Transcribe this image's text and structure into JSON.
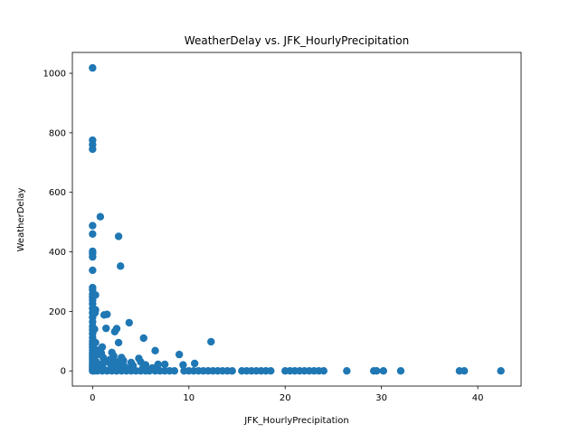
{
  "chart_data": {
    "type": "scatter",
    "title": "WeatherDelay vs. JFK_HourlyPrecipitation",
    "xlabel": "JFK_HourlyPrecipitation",
    "ylabel": "WeatherDelay",
    "xlim": [
      -2.1,
      44.5
    ],
    "ylim": [
      -51,
      1070
    ],
    "xticks": [
      0,
      10,
      20,
      30,
      40
    ],
    "yticks": [
      0,
      200,
      400,
      600,
      800,
      1000
    ],
    "grid": false,
    "color": "#1f77b4",
    "series": [
      {
        "points": [
          [
            0,
            1018
          ],
          [
            0,
            775
          ],
          [
            0,
            760
          ],
          [
            0,
            745
          ],
          [
            0,
            488
          ],
          [
            0,
            460
          ],
          [
            0,
            402
          ],
          [
            0,
            395
          ],
          [
            0,
            383
          ],
          [
            0,
            338
          ],
          [
            0,
            280
          ],
          [
            0,
            272
          ],
          [
            0,
            258
          ],
          [
            0,
            248
          ],
          [
            0,
            238
          ],
          [
            0,
            225
          ],
          [
            0,
            210
          ],
          [
            0,
            195
          ],
          [
            0,
            180
          ],
          [
            0,
            165
          ],
          [
            0,
            150
          ],
          [
            0,
            138
          ],
          [
            0,
            125
          ],
          [
            0,
            112
          ],
          [
            0,
            100
          ],
          [
            0,
            90
          ],
          [
            0,
            80
          ],
          [
            0,
            70
          ],
          [
            0,
            60
          ],
          [
            0,
            52
          ],
          [
            0,
            45
          ],
          [
            0,
            38
          ],
          [
            0,
            30
          ],
          [
            0,
            24
          ],
          [
            0,
            18
          ],
          [
            0,
            12
          ],
          [
            0,
            6
          ],
          [
            0,
            0
          ],
          [
            0.3,
            255
          ],
          [
            0.3,
            205
          ],
          [
            0.25,
            195
          ],
          [
            0.2,
            140
          ],
          [
            0.3,
            95
          ],
          [
            0.4,
            70
          ],
          [
            0.5,
            55
          ],
          [
            0.2,
            40
          ],
          [
            0.4,
            30
          ],
          [
            0.6,
            20
          ],
          [
            0.3,
            15
          ],
          [
            0.5,
            8
          ],
          [
            0.2,
            0
          ],
          [
            0.5,
            0
          ],
          [
            0.8,
            518
          ],
          [
            1.2,
            188
          ],
          [
            1.5,
            190
          ],
          [
            1.4,
            143
          ],
          [
            1.0,
            80
          ],
          [
            0.9,
            60
          ],
          [
            1.1,
            45
          ],
          [
            1.3,
            30
          ],
          [
            0.8,
            22
          ],
          [
            1.0,
            12
          ],
          [
            1.2,
            5
          ],
          [
            1.0,
            0
          ],
          [
            1.5,
            0
          ],
          [
            2.3,
            132
          ],
          [
            2.5,
            142
          ],
          [
            2.0,
            62
          ],
          [
            2.2,
            50
          ],
          [
            1.8,
            38
          ],
          [
            2.5,
            30
          ],
          [
            1.9,
            20
          ],
          [
            2.4,
            10
          ],
          [
            2.0,
            0
          ],
          [
            2.5,
            0
          ],
          [
            2.7,
            452
          ],
          [
            2.9,
            352
          ],
          [
            2.7,
            95
          ],
          [
            3.0,
            45
          ],
          [
            3.2,
            35
          ],
          [
            2.8,
            25
          ],
          [
            3.3,
            15
          ],
          [
            3.0,
            5
          ],
          [
            3.0,
            0
          ],
          [
            3.5,
            0
          ],
          [
            3.8,
            162
          ],
          [
            4.0,
            28
          ],
          [
            4.2,
            18
          ],
          [
            3.9,
            8
          ],
          [
            4.0,
            0
          ],
          [
            4.5,
            0
          ],
          [
            4.8,
            42
          ],
          [
            5.0,
            30
          ],
          [
            5.3,
            110
          ],
          [
            5.5,
            20
          ],
          [
            5.2,
            8
          ],
          [
            5.0,
            0
          ],
          [
            5.5,
            0
          ],
          [
            5.9,
            0
          ],
          [
            6.2,
            10
          ],
          [
            6.5,
            68
          ],
          [
            6.8,
            22
          ],
          [
            6.5,
            0
          ],
          [
            7.0,
            0
          ],
          [
            7.5,
            22
          ],
          [
            7.5,
            0
          ],
          [
            8.0,
            0
          ],
          [
            8.5,
            0
          ],
          [
            9.0,
            55
          ],
          [
            9.4,
            20
          ],
          [
            9.5,
            0
          ],
          [
            10.0,
            0
          ],
          [
            10.6,
            25
          ],
          [
            10.5,
            0
          ],
          [
            11.0,
            0
          ],
          [
            11.5,
            0
          ],
          [
            12.0,
            0
          ],
          [
            12.3,
            98
          ],
          [
            12.5,
            0
          ],
          [
            13.0,
            0
          ],
          [
            13.5,
            0
          ],
          [
            14.0,
            0
          ],
          [
            14.5,
            0
          ],
          [
            15.5,
            0
          ],
          [
            16.0,
            0
          ],
          [
            16.5,
            0
          ],
          [
            17.0,
            0
          ],
          [
            17.5,
            0
          ],
          [
            18.0,
            0
          ],
          [
            18.5,
            0
          ],
          [
            20.0,
            0
          ],
          [
            20.5,
            0
          ],
          [
            21.0,
            0
          ],
          [
            21.5,
            0
          ],
          [
            22.0,
            0
          ],
          [
            22.5,
            0
          ],
          [
            23.0,
            0
          ],
          [
            23.5,
            0
          ],
          [
            24.0,
            0
          ],
          [
            26.4,
            0
          ],
          [
            29.2,
            0
          ],
          [
            29.5,
            0
          ],
          [
            30.2,
            0
          ],
          [
            32.0,
            0
          ],
          [
            38.1,
            0
          ],
          [
            38.6,
            0
          ],
          [
            42.4,
            0
          ]
        ]
      }
    ]
  }
}
